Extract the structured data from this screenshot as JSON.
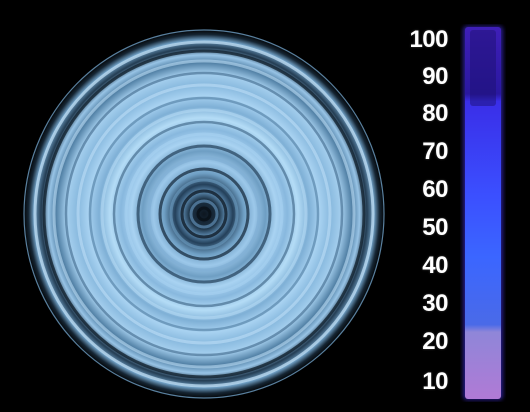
{
  "scale": {
    "labels": [
      "100",
      "90",
      "80",
      "70",
      "60",
      "50",
      "40",
      "30",
      "20",
      "10"
    ]
  },
  "colors": {
    "background": "#000000",
    "ring_light": "#a9d3f2",
    "ring_mid": "#6f9fc4",
    "ring_dark": "#1d3346",
    "bar_top": "#3f1fb8",
    "bar_mid": "#3b5fff",
    "bar_bottom": "#b07ad6",
    "label": "#ffffff"
  }
}
